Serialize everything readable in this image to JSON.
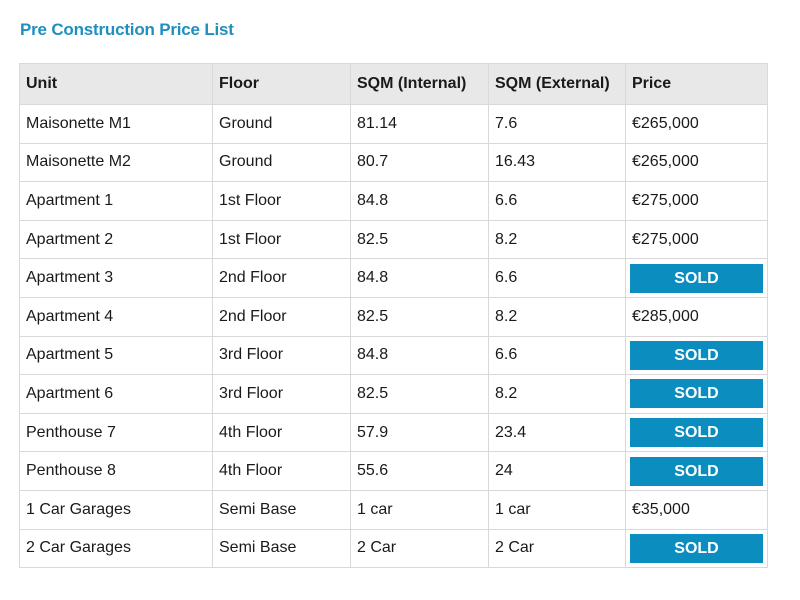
{
  "title": "Pre Construction Price List",
  "columns": [
    "Unit",
    "Floor",
    "SQM (Internal)",
    "SQM (External)",
    "Price"
  ],
  "rows": [
    {
      "unit": "Maisonette M1",
      "floor": "Ground",
      "sqm_internal": "81.14",
      "sqm_external": "7.6",
      "price": "€265,000",
      "sold": false
    },
    {
      "unit": "Maisonette M2",
      "floor": "Ground",
      "sqm_internal": "80.7",
      "sqm_external": "16.43",
      "price": "€265,000",
      "sold": false
    },
    {
      "unit": "Apartment 1",
      "floor": "1st Floor",
      "sqm_internal": "84.8",
      "sqm_external": "6.6",
      "price": "€275,000",
      "sold": false
    },
    {
      "unit": "Apartment 2",
      "floor": "1st Floor",
      "sqm_internal": "82.5",
      "sqm_external": "8.2",
      "price": "€275,000",
      "sold": false
    },
    {
      "unit": "Apartment 3",
      "floor": "2nd Floor",
      "sqm_internal": "84.8",
      "sqm_external": "6.6",
      "price": "SOLD",
      "sold": true
    },
    {
      "unit": "Apartment 4",
      "floor": "2nd Floor",
      "sqm_internal": "82.5",
      "sqm_external": "8.2",
      "price": "€285,000",
      "sold": false
    },
    {
      "unit": "Apartment 5",
      "floor": "3rd Floor",
      "sqm_internal": "84.8",
      "sqm_external": "6.6",
      "price": "SOLD",
      "sold": true
    },
    {
      "unit": "Apartment 6",
      "floor": "3rd Floor",
      "sqm_internal": "82.5",
      "sqm_external": "8.2",
      "price": "SOLD",
      "sold": true
    },
    {
      "unit": "Penthouse 7",
      "floor": "4th Floor",
      "sqm_internal": "57.9",
      "sqm_external": "23.4",
      "price": "SOLD",
      "sold": true
    },
    {
      "unit": "Penthouse 8",
      "floor": "4th Floor",
      "sqm_internal": "55.6",
      "sqm_external": "24",
      "price": "SOLD",
      "sold": true
    },
    {
      "unit": "1 Car Garages",
      "floor": "Semi Base",
      "sqm_internal": "1 car",
      "sqm_external": "1 car",
      "price": "€35,000",
      "sold": false
    },
    {
      "unit": "2 Car Garages",
      "floor": "Semi Base",
      "sqm_internal": "2 Car",
      "sqm_external": "2 Car",
      "price": "SOLD",
      "sold": true
    }
  ],
  "colors": {
    "title": "#1f8fc0",
    "sold_badge_bg": "#0b8dc0",
    "sold_badge_text": "#ffffff",
    "header_bg": "#e8e8e8",
    "border": "#d9d9d9"
  }
}
